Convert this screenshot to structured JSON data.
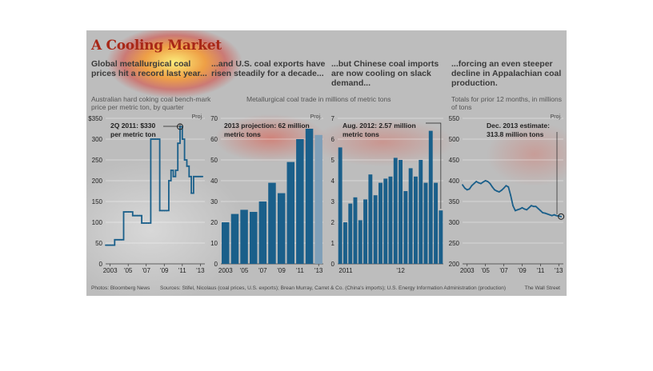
{
  "title": "A Cooling Market",
  "panels": [
    {
      "heading": "Global metallurgical coal prices hit a record last year...",
      "sub": "Australian hard coking coal bench-mark price per metric ton, by quarter",
      "proj": "Proj.",
      "annotation": [
        "2Q 2011: $330",
        "per metric ton"
      ]
    },
    {
      "heading": "...and U.S. coal exports have risen steadily for a decade...",
      "sub": "Metallurgical coal trade in millions of metric tons",
      "proj": "Proj.",
      "annotation": [
        "2013 projection: 62 million",
        "metric tons"
      ]
    },
    {
      "heading": "...but Chinese coal imports are now cooling on slack demand...",
      "sub": "",
      "annotation": [
        "Aug. 2012: 2.57 million",
        "metric tons"
      ]
    },
    {
      "heading": "...forcing an even steeper decline in Appalachian coal production.",
      "sub": "Totals for prior 12 months, in millions of tons",
      "proj": "Proj.",
      "annotation": [
        "Dec. 2013 estimate:",
        "313.8 million tons"
      ]
    }
  ],
  "footer": {
    "photos": "Photos: Bloomberg News",
    "sources": "Sources: Stifel, Nicolaus (coal prices, U.S. exports); Brean Murray, Carret & Co. (China's imports); U.S. Energy Information Administration (production)",
    "credit": "The Wall Street"
  },
  "colors": {
    "bar": "#1a5f8a",
    "bar_projection": "#7f9fb8",
    "line": "#1a5f8a",
    "title": "#a82717"
  },
  "chart_data": [
    {
      "type": "line",
      "x": [
        2003.0,
        2003.25,
        2003.5,
        2003.75,
        2004.0,
        2004.25,
        2004.5,
        2004.75,
        2005.0,
        2005.25,
        2005.5,
        2005.75,
        2006.0,
        2006.25,
        2006.5,
        2006.75,
        2007.0,
        2007.25,
        2007.5,
        2007.75,
        2008.0,
        2008.25,
        2008.5,
        2008.75,
        2009.0,
        2009.25,
        2009.5,
        2009.75,
        2010.0,
        2010.25,
        2010.5,
        2010.75,
        2011.0,
        2011.25,
        2011.5,
        2011.75,
        2012.0,
        2012.25,
        2012.5,
        2012.75,
        2013.0,
        2013.25,
        2013.5,
        2013.75
      ],
      "values": [
        45,
        45,
        45,
        45,
        58,
        58,
        58,
        58,
        125,
        125,
        125,
        125,
        116,
        116,
        116,
        116,
        98,
        98,
        98,
        98,
        300,
        300,
        300,
        300,
        128,
        128,
        128,
        128,
        200,
        225,
        210,
        225,
        290,
        330,
        300,
        250,
        235,
        210,
        170,
        210,
        210,
        210,
        210,
        210
      ],
      "xticks": [
        "2003",
        "'05",
        "'07",
        "'09",
        "'11",
        "'13"
      ],
      "yticks": [
        "$350",
        "300",
        "250",
        "200",
        "150",
        "100",
        "50",
        "0"
      ],
      "ylim": [
        0,
        350
      ]
    },
    {
      "type": "bar",
      "categories": [
        "2003",
        "2004",
        "2005",
        "2006",
        "2007",
        "2008",
        "2009",
        "2010",
        "2011",
        "2012",
        "2013"
      ],
      "values": [
        20,
        24,
        26,
        25,
        30,
        39,
        34,
        49,
        60,
        65,
        62
      ],
      "projected": [
        false,
        false,
        false,
        false,
        false,
        false,
        false,
        false,
        false,
        false,
        true
      ],
      "xticks": [
        "2003",
        "'05",
        "'07",
        "'09",
        "'11",
        "'13"
      ],
      "yticks": [
        "70",
        "60",
        "50",
        "40",
        "30",
        "20",
        "10",
        "0"
      ],
      "ylim": [
        0,
        70
      ]
    },
    {
      "type": "bar",
      "values": [
        5.6,
        2.0,
        2.9,
        3.2,
        2.1,
        3.1,
        4.3,
        3.3,
        3.9,
        4.1,
        4.2,
        5.1,
        5.0,
        3.5,
        4.6,
        4.2,
        5.0,
        3.9,
        6.4,
        3.9,
        2.57
      ],
      "xticks": [
        "2011",
        "'12"
      ],
      "yticks": [
        "7",
        "6",
        "5",
        "4",
        "3",
        "2",
        "1",
        "0"
      ],
      "ylim": [
        0,
        7
      ]
    },
    {
      "type": "line",
      "x": [
        2003.0,
        2003.25,
        2003.5,
        2003.75,
        2004.0,
        2004.25,
        2004.5,
        2004.75,
        2005.0,
        2005.25,
        2005.5,
        2005.75,
        2006.0,
        2006.25,
        2006.5,
        2006.75,
        2007.0,
        2007.25,
        2007.5,
        2007.75,
        2008.0,
        2008.25,
        2008.5,
        2008.75,
        2009.0,
        2009.25,
        2009.5,
        2009.75,
        2010.0,
        2010.25,
        2010.5,
        2010.75,
        2011.0,
        2011.25,
        2011.5,
        2011.75,
        2012.0,
        2012.25,
        2012.5,
        2012.75,
        2013.0,
        2013.25,
        2013.5,
        2013.75
      ],
      "values": [
        390,
        382,
        378,
        380,
        388,
        393,
        398,
        395,
        393,
        397,
        400,
        398,
        393,
        385,
        378,
        375,
        373,
        377,
        382,
        388,
        385,
        365,
        340,
        328,
        330,
        332,
        335,
        332,
        330,
        335,
        340,
        338,
        338,
        333,
        328,
        323,
        322,
        320,
        318,
        316,
        318,
        316,
        315,
        313.8
      ],
      "xticks": [
        "2003",
        "'05",
        "'07",
        "'09",
        "'11",
        "'13"
      ],
      "yticks": [
        "550",
        "500",
        "450",
        "400",
        "350",
        "300",
        "250",
        "200"
      ],
      "ylim": [
        200,
        550
      ]
    }
  ]
}
